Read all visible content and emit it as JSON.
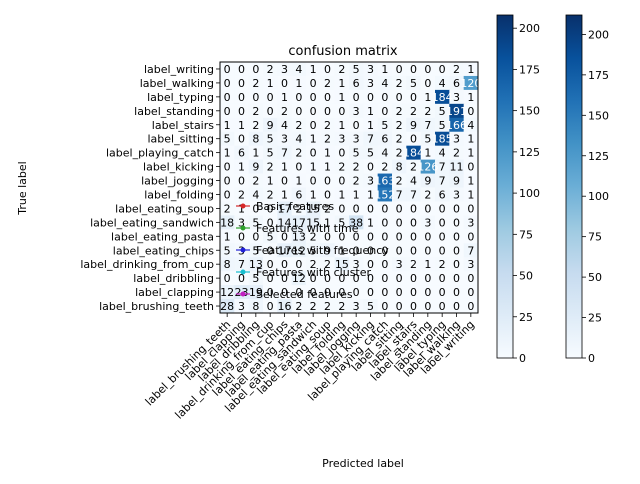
{
  "chart_data": {
    "type": "heatmap",
    "title": "confusion matrix",
    "xlabel": "Predicted label",
    "ylabel": "True label",
    "labels": [
      "label_brushing_teeth",
      "label_clapping",
      "label_dribbling",
      "label_drinking_from_cup",
      "label_eating_chips",
      "label_eating_pasta",
      "label_eating_sandwich",
      "label_eating_soup",
      "label_folding",
      "label_jogging",
      "label_kicking",
      "label_playing_catch",
      "label_sitting",
      "label_stairs",
      "label_standing",
      "label_typing",
      "label_walking",
      "label_writing"
    ],
    "rows": [
      {
        "label": "label_writing",
        "values": [
          0,
          0,
          0,
          2,
          3,
          4,
          1,
          0,
          2,
          5,
          3,
          1,
          0,
          0,
          0,
          0,
          2,
          1
        ]
      },
      {
        "label": "label_walking",
        "values": [
          0,
          0,
          2,
          1,
          0,
          1,
          0,
          2,
          1,
          6,
          3,
          4,
          2,
          5,
          0,
          4,
          6,
          120
        ]
      },
      {
        "label": "label_typing",
        "values": [
          0,
          0,
          0,
          0,
          1,
          0,
          0,
          0,
          1,
          0,
          0,
          0,
          0,
          0,
          1,
          184,
          3,
          1
        ]
      },
      {
        "label": "label_standing",
        "values": [
          0,
          0,
          2,
          0,
          2,
          0,
          0,
          0,
          0,
          3,
          1,
          0,
          2,
          2,
          2,
          5,
          191,
          0
        ]
      },
      {
        "label": "label_stairs",
        "values": [
          1,
          1,
          2,
          9,
          4,
          2,
          0,
          2,
          1,
          0,
          1,
          5,
          2,
          9,
          7,
          5,
          166,
          4
        ]
      },
      {
        "label": "label_sitting",
        "values": [
          5,
          0,
          8,
          5,
          3,
          4,
          1,
          2,
          3,
          3,
          7,
          6,
          2,
          0,
          5,
          185,
          3,
          1
        ]
      },
      {
        "label": "label_playing_catch",
        "values": [
          1,
          6,
          1,
          5,
          7,
          2,
          0,
          1,
          0,
          5,
          5,
          4,
          2,
          184,
          1,
          4,
          2,
          1
        ]
      },
      {
        "label": "label_kicking",
        "values": [
          0,
          1,
          9,
          2,
          1,
          0,
          1,
          1,
          2,
          2,
          0,
          2,
          8,
          2,
          126,
          7,
          11,
          0
        ]
      },
      {
        "label": "label_jogging",
        "values": [
          0,
          0,
          2,
          1,
          0,
          1,
          0,
          0,
          0,
          2,
          3,
          163,
          2,
          4,
          9,
          7,
          9,
          1
        ]
      },
      {
        "label": "label_folding",
        "values": [
          0,
          2,
          4,
          2,
          1,
          6,
          1,
          0,
          1,
          1,
          1,
          152,
          7,
          7,
          2,
          6,
          3,
          1
        ]
      },
      {
        "label": "label_eating_soup",
        "values": [
          2,
          1,
          0,
          0,
          17,
          2,
          15,
          2,
          0,
          0,
          0,
          0,
          0,
          0,
          0,
          0,
          0,
          0
        ]
      },
      {
        "label": "label_eating_sandwich",
        "values": [
          18,
          3,
          5,
          0,
          14,
          17,
          15,
          1,
          5,
          38,
          1,
          0,
          0,
          0,
          3,
          0,
          0,
          3
        ]
      },
      {
        "label": "label_eating_pasta",
        "values": [
          1,
          0,
          0,
          5,
          0,
          13,
          2,
          0,
          0,
          0,
          0,
          0,
          0,
          0,
          0,
          0,
          0,
          0
        ]
      },
      {
        "label": "label_eating_chips",
        "values": [
          5,
          3,
          5,
          0,
          17,
          12,
          5,
          9,
          1,
          0,
          0,
          0,
          0,
          0,
          0,
          0,
          0,
          7
        ]
      },
      {
        "label": "label_drinking_from_cup",
        "values": [
          8,
          7,
          13,
          0,
          0,
          0,
          2,
          2,
          15,
          3,
          0,
          0,
          3,
          2,
          1,
          2,
          0,
          3
        ]
      },
      {
        "label": "label_dribbling",
        "values": [
          0,
          0,
          5,
          0,
          0,
          12,
          0,
          0,
          0,
          0,
          0,
          0,
          0,
          0,
          0,
          0,
          0,
          0
        ]
      },
      {
        "label": "label_clapping",
        "values": [
          12,
          23,
          19,
          0,
          0,
          0,
          0,
          0,
          0,
          0,
          0,
          0,
          0,
          0,
          0,
          0,
          0,
          0
        ]
      },
      {
        "label": "label_brushing_teeth",
        "values": [
          28,
          3,
          8,
          0,
          16,
          2,
          2,
          2,
          2,
          3,
          5,
          0,
          0,
          0,
          0,
          0,
          0,
          0
        ]
      }
    ],
    "colorbars": [
      {
        "ticks": [
          0,
          25,
          50,
          75,
          100,
          125,
          150,
          175,
          200
        ],
        "max": 208
      },
      {
        "ticks": [
          0,
          25,
          50,
          75,
          100,
          125,
          150,
          175,
          200
        ],
        "max": 212
      }
    ],
    "colormap": "Blues",
    "legend": {
      "position": "center",
      "entries": [
        {
          "label": "Basic features",
          "color": "#d62728"
        },
        {
          "label": "Features with time",
          "color": "#2ca02c"
        },
        {
          "label": "Features with frequency",
          "color": "#1f1fd6"
        },
        {
          "label": "Features with cluster",
          "color": "#17becf"
        },
        {
          "label": "Selected features",
          "color": "#c020c0"
        }
      ]
    }
  }
}
